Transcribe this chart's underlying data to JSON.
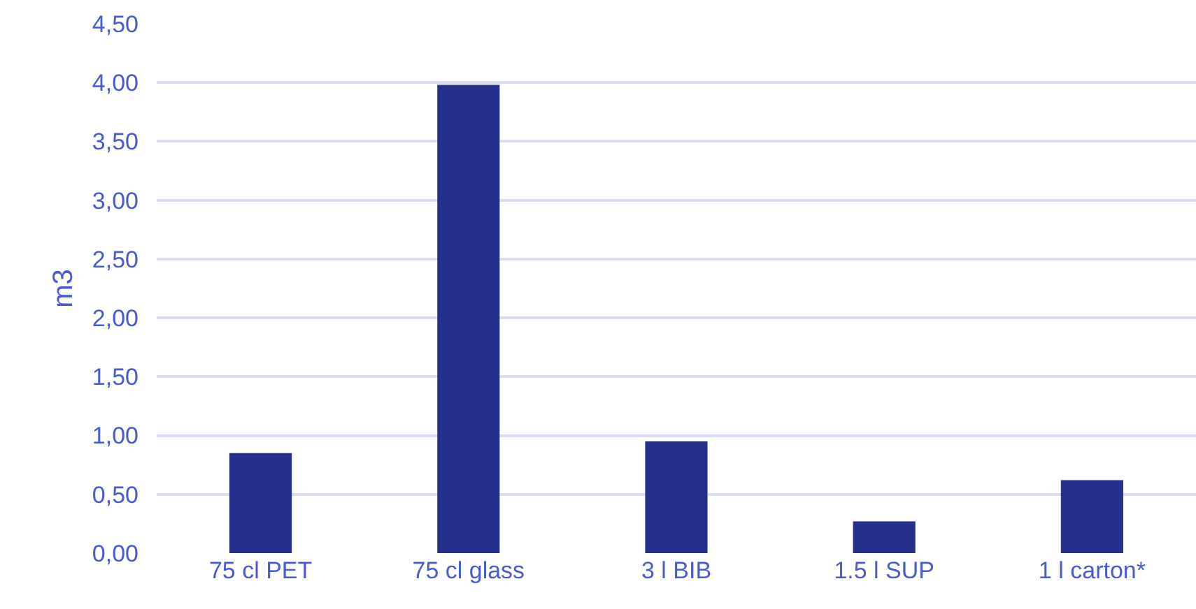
{
  "chart_data": {
    "type": "bar",
    "ylabel": "m3",
    "categories": [
      "75 cl PET",
      "75 cl glass",
      "3 l BIB",
      "1.5 l SUP",
      "1 l carton*"
    ],
    "values": [
      0.85,
      3.98,
      0.95,
      0.27,
      0.62
    ],
    "color": "#25308c",
    "ylim": [
      0,
      4.5
    ],
    "yticks": [
      {
        "value": 0,
        "label": "0,00"
      },
      {
        "value": 0.5,
        "label": "0,50"
      },
      {
        "value": 1,
        "label": "1,00"
      },
      {
        "value": 1.5,
        "label": "1,50"
      },
      {
        "value": 2,
        "label": "2,00"
      },
      {
        "value": 2.5,
        "label": "2,50"
      },
      {
        "value": 3,
        "label": "3,00"
      },
      {
        "value": 3.5,
        "label": "3,50"
      },
      {
        "value": 4,
        "label": "4,00"
      },
      {
        "value": 4.5,
        "label": "4,50"
      }
    ],
    "grid": "y"
  }
}
